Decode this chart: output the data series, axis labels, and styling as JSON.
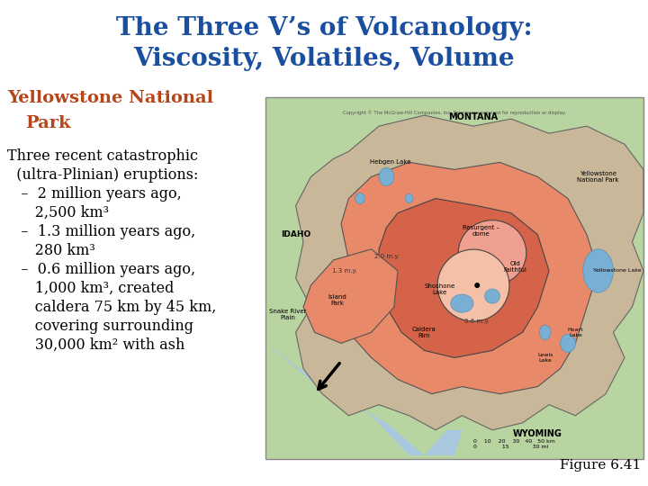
{
  "title_line1": "The Three V’s of Volcanology:",
  "title_line2": "Viscosity, Volatiles, Volume",
  "title_color": "#1a4fa0",
  "subtitle_line1": "Yellowstone National",
  "subtitle_line2": "  Park",
  "subtitle_color": "#b5451b",
  "body_lines": [
    "Three recent catastrophic",
    "  (ultra-Plinian) eruptions:",
    "   –  2 million years ago,",
    "      2,500 km³",
    "   –  1.3 million years ago,",
    "      280 km³",
    "   –  0.6 million years ago,",
    "      1,000 km³, created",
    "      caldera 75 km by 45 km,",
    "      covering surrounding",
    "      30,000 km² with ash"
  ],
  "body_color": "#000000",
  "figure_label": "Figure 6.41",
  "background_color": "#ffffff",
  "title_fontsize": 20,
  "subtitle_fontsize": 14,
  "body_fontsize": 11.5,
  "figure_label_fontsize": 11,
  "map_bg_color": "#b8d4a0",
  "map_outer_color": "#c8b899",
  "map_mid_color": "#e8896a",
  "map_inner_color": "#d4634a",
  "map_dome_color": "#f0a090",
  "map_caldera_color": "#e8896a",
  "map_lake_color": "#7aafd4",
  "map_river_color": "#a8c8e0"
}
